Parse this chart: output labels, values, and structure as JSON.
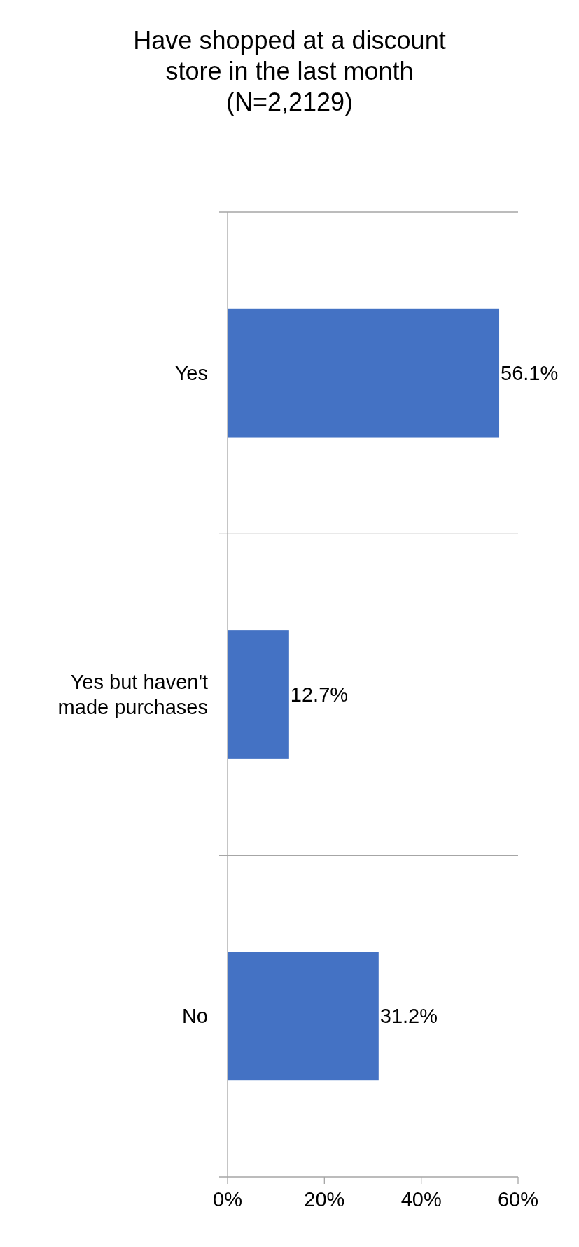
{
  "chart_data": {
    "type": "bar",
    "orientation": "horizontal",
    "title": "Have shopped at a discount store in the last month (N=2,2129)",
    "categories": [
      "Yes",
      "Yes but haven't made purchases",
      "No"
    ],
    "values": [
      56.1,
      12.7,
      31.2
    ],
    "color": "#4472c4",
    "value_labels": [
      "56.1%",
      "12.7%",
      "31.2%"
    ],
    "xlim": [
      0,
      60
    ],
    "xticks": [
      {
        "value": 0,
        "label": "0%"
      },
      {
        "value": 20,
        "label": "20%"
      },
      {
        "value": 40,
        "label": "40%"
      },
      {
        "value": 60,
        "label": "60%"
      }
    ],
    "grid": "y"
  }
}
